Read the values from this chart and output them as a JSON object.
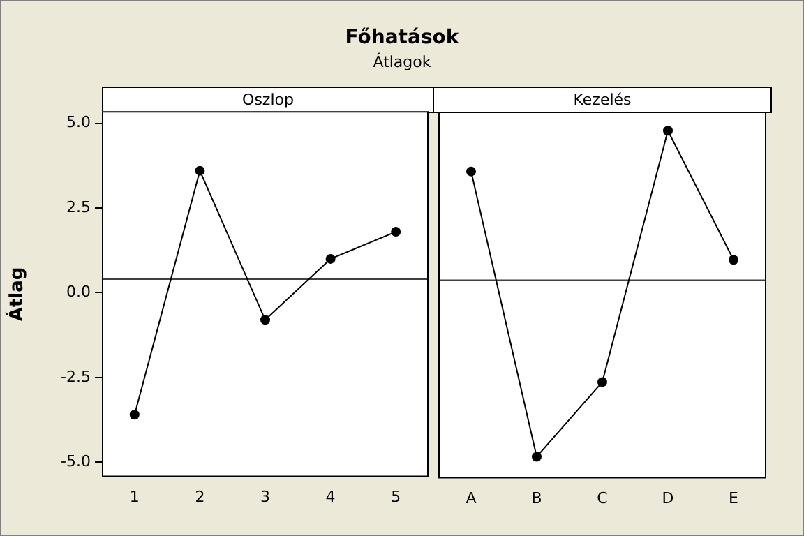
{
  "chart_data": [
    {
      "type": "line",
      "title": "Főhatások",
      "subtitle": "Átlagok",
      "xlabel": "Oszlop",
      "ylabel": "Átlag",
      "categories": [
        "1",
        "2",
        "3",
        "4",
        "5"
      ],
      "series": [
        {
          "color": "#000000",
          "values": [
            -3.6,
            3.6,
            -0.8,
            1.0,
            1.8
          ]
        }
      ],
      "ylim": [
        -5.44,
        5.36
      ],
      "yticks": [
        {
          "value": -5,
          "label": "-5.0"
        },
        {
          "value": -2.5,
          "label": "-2.5"
        },
        {
          "value": 0,
          "label": "0.0"
        },
        {
          "value": 2.5,
          "label": "2.5"
        },
        {
          "value": 5,
          "label": "5.0"
        }
      ],
      "ref_lines": [
        {
          "axis": "y",
          "value": 0.4,
          "color": "#404040"
        }
      ],
      "grid": false,
      "legend": false,
      "marker": "circle",
      "line_style": "solid"
    },
    {
      "type": "line",
      "xlabel": "Kezelés",
      "categories": [
        "A",
        "B",
        "C",
        "D",
        "E"
      ],
      "series": [
        {
          "color": "#000000",
          "values": [
            3.6,
            -4.8,
            -2.6,
            4.8,
            1.0
          ]
        }
      ],
      "ylim": [
        -5.44,
        5.36
      ],
      "tick_labels": "x",
      "ref_lines": [
        {
          "axis": "y",
          "value": 0.4,
          "color": "#404040"
        }
      ],
      "grid": false,
      "legend": false,
      "marker": "circle",
      "line_style": "solid"
    }
  ]
}
